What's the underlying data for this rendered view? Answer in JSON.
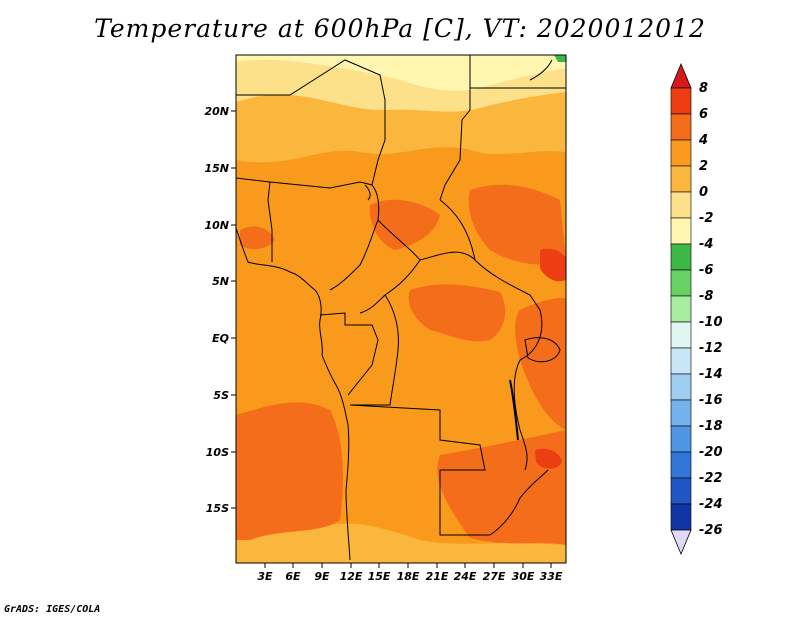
{
  "title": "Temperature at 600hPa [C], VT: 2020012012",
  "credit": "GrADS: IGES/COLA",
  "lat_labels": [
    "20N",
    "15N",
    "10N",
    "5N",
    "EQ",
    "5S",
    "10S",
    "15S"
  ],
  "lon_labels": [
    "3E",
    "6E",
    "9E",
    "12E",
    "15E",
    "18E",
    "21E",
    "24E",
    "27E",
    "30E",
    "33E"
  ],
  "colorbar": {
    "labels": [
      "8",
      "6",
      "4",
      "2",
      "0",
      "-2",
      "-4",
      "-6",
      "-8",
      "-10",
      "-12",
      "-14",
      "-16",
      "-18",
      "-20",
      "-22",
      "-24",
      "-26"
    ],
    "colors": [
      "#d7191c",
      "#ec3e12",
      "#f46d1a",
      "#f99a1d",
      "#fbb73d",
      "#fde08a",
      "#fff7b0",
      "#3cb847",
      "#66d262",
      "#a8eea0",
      "#dff7f0",
      "#c9e6f8",
      "#9fcdf2",
      "#73b2ec",
      "#4e95e3",
      "#3277d8",
      "#1f56c3",
      "#1135a4",
      "#0a1670",
      "#e0d9f5"
    ]
  },
  "map": {
    "lat_range": [
      -20,
      24
    ],
    "lon_range": [
      0,
      34.5
    ],
    "field": "Temperature",
    "level": "600hPa",
    "units": "C"
  }
}
